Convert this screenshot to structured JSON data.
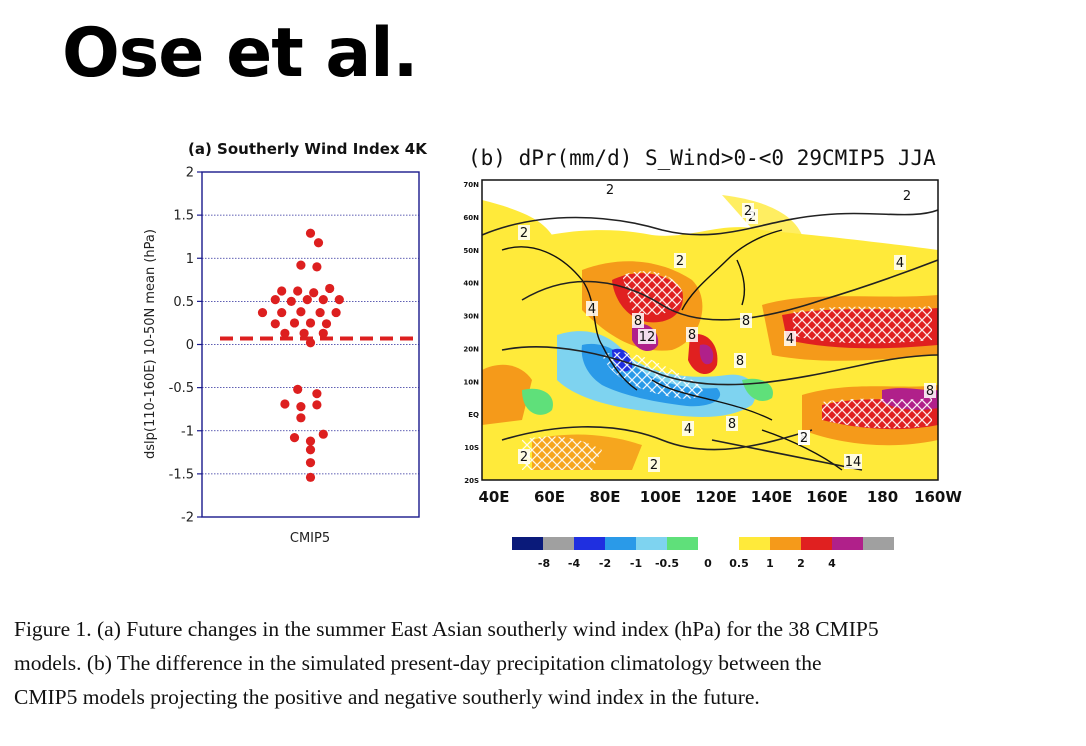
{
  "slide": {
    "title": "Ose et al."
  },
  "panel_a": {
    "title": "(a) Southerly Wind Index 4K",
    "ylabel": "dslp(110-160E) 10-50N mean (hPa)",
    "xlabel": "CMIP5",
    "colors": {
      "points": "#dd1f1f",
      "frame": "#1a1a8c",
      "grid": "#2a2a9a"
    }
  },
  "panel_b": {
    "title": "(b) dPr(mm/d) S_Wind>0-<0 29CMIP5 JJA",
    "lat_labels": [
      "70N",
      "60N",
      "50N",
      "40N",
      "30N",
      "20N",
      "10N",
      "EQ",
      "10S",
      "20S"
    ],
    "lon_labels": [
      "40E",
      "60E",
      "80E",
      "100E",
      "120E",
      "140E",
      "160E",
      "180",
      "160W"
    ],
    "contour_labels": [
      "2",
      "2",
      "2",
      "2",
      "2",
      "2",
      "2",
      "2",
      "4",
      "4",
      "4",
      "4",
      "8",
      "8",
      "8",
      "8",
      "8",
      "8",
      "12",
      "14",
      "8",
      "2"
    ],
    "colorbar": {
      "colors": [
        "#0a1a7a",
        "#a0a0a0",
        "#1f2fe0",
        "#2a9ae8",
        "#7ed3f0",
        "#5fe07a",
        "#ffffff",
        "#ffea3a",
        "#f59a1a",
        "#e02020",
        "#b0208a",
        "#a0a0a0"
      ],
      "labels": [
        "-8",
        "-4",
        "-2",
        "-1",
        "-0.5",
        "0",
        "0.5",
        "1",
        "2",
        "4"
      ]
    }
  },
  "chart_data": {
    "type": "scatter",
    "title": "(a) Southerly Wind Index 4K",
    "xlabel": "CMIP5",
    "ylabel": "dslp(110-160E) 10-50N mean (hPa)",
    "ylim": [
      -2,
      2
    ],
    "yticks": [
      -2,
      -1.5,
      -1,
      -0.5,
      0,
      0.5,
      1,
      1.5,
      2
    ],
    "mean_line": 0.07,
    "grid": true,
    "points": [
      {
        "x": 0.0,
        "y": 1.29
      },
      {
        "x": 0.05,
        "y": 1.18
      },
      {
        "x": -0.06,
        "y": 0.92
      },
      {
        "x": 0.04,
        "y": 0.9
      },
      {
        "x": -0.18,
        "y": 0.62
      },
      {
        "x": -0.08,
        "y": 0.62
      },
      {
        "x": 0.02,
        "y": 0.6
      },
      {
        "x": 0.12,
        "y": 0.65
      },
      {
        "x": -0.22,
        "y": 0.52
      },
      {
        "x": -0.12,
        "y": 0.5
      },
      {
        "x": -0.02,
        "y": 0.52
      },
      {
        "x": 0.08,
        "y": 0.52
      },
      {
        "x": 0.18,
        "y": 0.52
      },
      {
        "x": -0.3,
        "y": 0.37
      },
      {
        "x": -0.18,
        "y": 0.37
      },
      {
        "x": -0.06,
        "y": 0.38
      },
      {
        "x": 0.06,
        "y": 0.37
      },
      {
        "x": 0.16,
        "y": 0.37
      },
      {
        "x": -0.22,
        "y": 0.24
      },
      {
        "x": -0.1,
        "y": 0.25
      },
      {
        "x": 0.0,
        "y": 0.25
      },
      {
        "x": 0.1,
        "y": 0.24
      },
      {
        "x": -0.16,
        "y": 0.13
      },
      {
        "x": -0.04,
        "y": 0.13
      },
      {
        "x": 0.08,
        "y": 0.13
      },
      {
        "x": 0.0,
        "y": 0.02
      },
      {
        "x": -0.08,
        "y": -0.52
      },
      {
        "x": 0.04,
        "y": -0.57
      },
      {
        "x": -0.16,
        "y": -0.69
      },
      {
        "x": -0.06,
        "y": -0.72
      },
      {
        "x": 0.04,
        "y": -0.7
      },
      {
        "x": -0.06,
        "y": -0.85
      },
      {
        "x": -0.1,
        "y": -1.08
      },
      {
        "x": 0.0,
        "y": -1.12
      },
      {
        "x": 0.08,
        "y": -1.04
      },
      {
        "x": 0.0,
        "y": -1.22
      },
      {
        "x": 0.0,
        "y": -1.37
      },
      {
        "x": 0.0,
        "y": -1.54
      }
    ]
  },
  "caption": {
    "line1": "Figure 1. (a) Future changes in the summer East Asian southerly wind index (hPa) for the 38 CMIP5",
    "line2": "models. (b) The difference in the simulated present-day precipitation climatology between the",
    "line3": "CMIP5 models projecting the positive and negative southerly wind index in the future."
  }
}
